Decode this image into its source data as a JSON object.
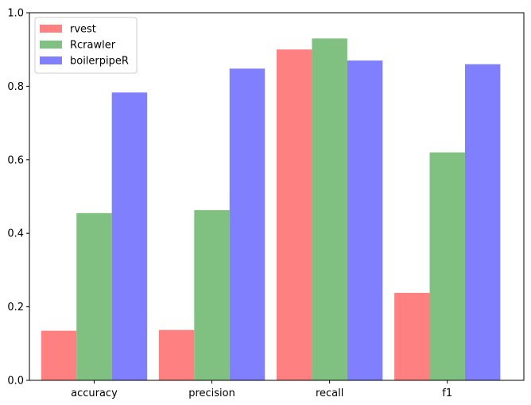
{
  "chart_data": {
    "type": "bar",
    "categories": [
      "accuracy",
      "precision",
      "recall",
      "f1"
    ],
    "series": [
      {
        "name": "rvest",
        "values": [
          0.135,
          0.137,
          0.9,
          0.238
        ],
        "color": "#ff8080"
      },
      {
        "name": "Rcrawler",
        "values": [
          0.455,
          0.463,
          0.93,
          0.62
        ],
        "color": "#80c080"
      },
      {
        "name": "boilerpipeR",
        "values": [
          0.783,
          0.848,
          0.87,
          0.86
        ],
        "color": "#8080ff"
      }
    ],
    "ylim": [
      0,
      1.0
    ],
    "yticks": [
      "0.0",
      "0.2",
      "0.4",
      "0.6",
      "0.8",
      "1.0"
    ],
    "grid": false,
    "legend_position": "top-left"
  }
}
